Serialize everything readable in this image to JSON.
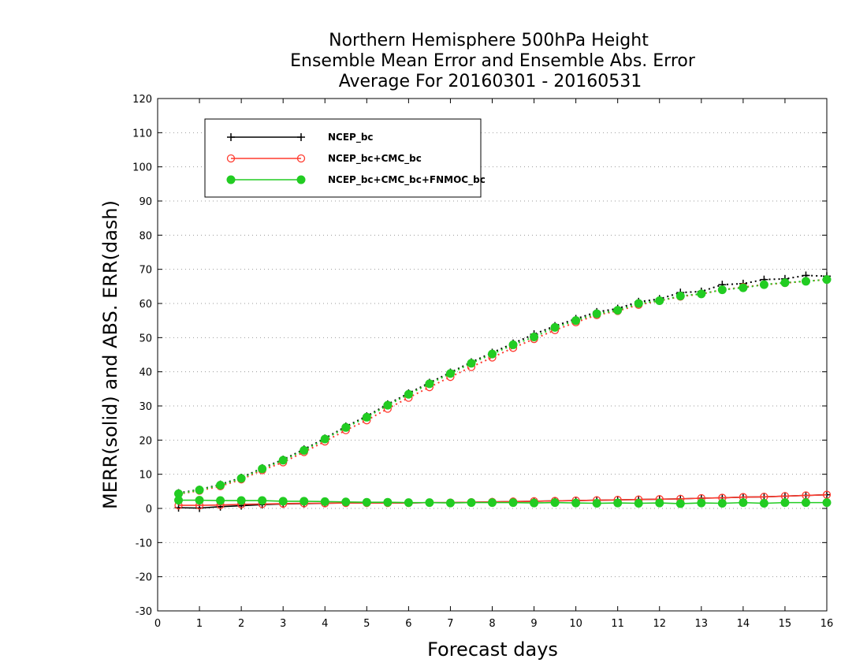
{
  "chart_data": {
    "type": "line",
    "title": [
      "Northern Hemisphere 500hPa Height",
      "Ensemble Mean Error and Ensemble Abs. Error",
      "Average For 20160301 - 20160531"
    ],
    "xlabel": "Forecast days",
    "ylabel": "MERR(solid) and ABS. ERR(dash)",
    "xlim": [
      0,
      16
    ],
    "ylim": [
      -30,
      120
    ],
    "xticks": [
      0,
      1,
      2,
      3,
      4,
      5,
      6,
      7,
      8,
      9,
      10,
      11,
      12,
      13,
      14,
      15,
      16
    ],
    "yticks": [
      -30,
      -20,
      -10,
      0,
      10,
      20,
      30,
      40,
      50,
      60,
      70,
      80,
      90,
      100,
      110,
      120
    ],
    "grid": "horizontal dotted",
    "legend_position": "top-left",
    "x": [
      0.5,
      1,
      1.5,
      2,
      2.5,
      3,
      3.5,
      4,
      4.5,
      5,
      5.5,
      6,
      6.5,
      7,
      7.5,
      8,
      8.5,
      9,
      9.5,
      10,
      10.5,
      11,
      11.5,
      12,
      12.5,
      13,
      13.5,
      14,
      14.5,
      15,
      15.5,
      16
    ],
    "series": [
      {
        "name": "NCEP_bc",
        "color": "#000000",
        "marker": "plus",
        "merr": [
          0.2,
          0.1,
          0.5,
          0.8,
          1.1,
          1.3,
          1.4,
          1.5,
          1.6,
          1.6,
          1.6,
          1.6,
          1.7,
          1.7,
          1.8,
          1.9,
          2.0,
          2.1,
          2.2,
          2.3,
          2.4,
          2.5,
          2.6,
          2.7,
          2.8,
          3.0,
          3.1,
          3.3,
          3.4,
          3.6,
          3.8,
          4.0
        ],
        "abs_err": [
          4.5,
          5.5,
          7.0,
          9.0,
          11.8,
          14.3,
          17.3,
          20.5,
          24.0,
          27.0,
          30.5,
          33.7,
          36.8,
          39.8,
          42.8,
          45.6,
          48.3,
          51.0,
          53.4,
          55.5,
          57.5,
          58.5,
          60.5,
          61.3,
          63.2,
          63.5,
          65.5,
          65.8,
          67.0,
          67.2,
          68.2,
          68.0
        ]
      },
      {
        "name": "NCEP_bc+CMC_bc",
        "color": "#ff3b2f",
        "marker": "open-circle",
        "merr": [
          0.9,
          0.9,
          1.0,
          1.2,
          1.3,
          1.4,
          1.5,
          1.5,
          1.6,
          1.6,
          1.6,
          1.6,
          1.7,
          1.7,
          1.8,
          1.9,
          2.0,
          2.1,
          2.2,
          2.3,
          2.4,
          2.5,
          2.6,
          2.7,
          2.8,
          3.0,
          3.1,
          3.3,
          3.4,
          3.6,
          3.8,
          4.0
        ],
        "abs_err": [
          4.2,
          5.2,
          6.5,
          8.5,
          11.2,
          13.5,
          16.5,
          19.6,
          22.9,
          25.8,
          29.2,
          32.4,
          35.5,
          38.5,
          41.4,
          44.2,
          47.0,
          49.6,
          52.2,
          54.5,
          56.6,
          57.8,
          59.6,
          60.8,
          62.0,
          62.8,
          64.0,
          64.8,
          65.5,
          66.0,
          66.5,
          67.0
        ]
      },
      {
        "name": "NCEP_bc+CMC_bc+FNMOC_bc",
        "color": "#22cc22",
        "marker": "filled-circle",
        "merr": [
          2.4,
          2.4,
          2.3,
          2.3,
          2.3,
          2.1,
          2.1,
          2.0,
          1.9,
          1.8,
          1.8,
          1.7,
          1.7,
          1.6,
          1.7,
          1.7,
          1.7,
          1.6,
          1.7,
          1.6,
          1.5,
          1.6,
          1.5,
          1.6,
          1.4,
          1.6,
          1.5,
          1.7,
          1.5,
          1.7,
          1.7,
          1.7
        ],
        "abs_err": [
          4.3,
          5.4,
          6.8,
          8.8,
          11.6,
          14.1,
          17.0,
          20.3,
          23.7,
          26.7,
          30.2,
          33.4,
          36.5,
          39.5,
          42.5,
          45.2,
          47.9,
          50.2,
          53.0,
          55.0,
          57.0,
          58.0,
          60.0,
          60.8,
          62.2,
          62.8,
          64.0,
          64.6,
          65.5,
          66.1,
          66.5,
          67.0
        ]
      }
    ]
  }
}
